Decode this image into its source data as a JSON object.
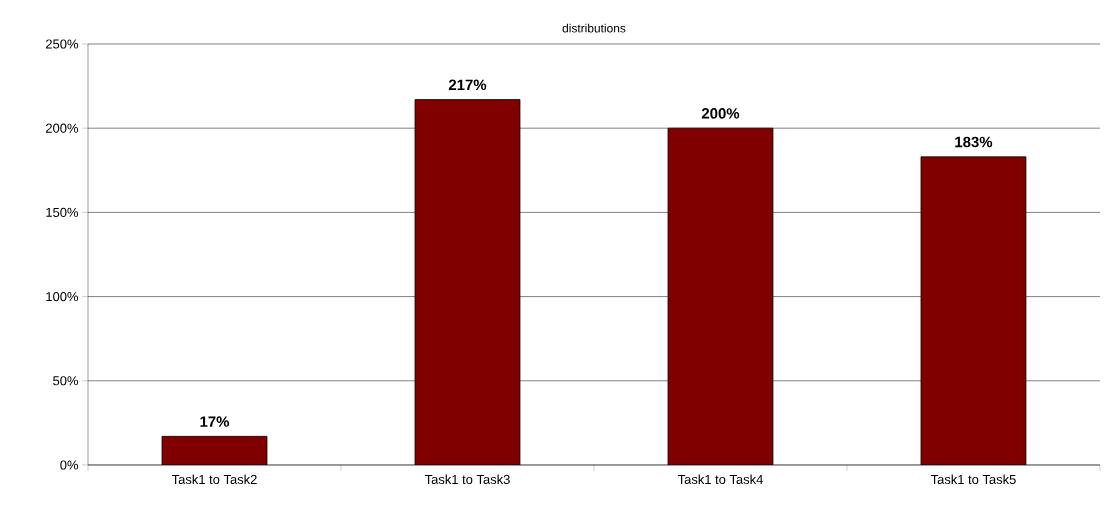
{
  "chart_data": {
    "type": "bar",
    "title": "distributions",
    "categories": [
      "Task1 to Task2",
      "Task1 to Task3",
      "Task1 to Task4",
      "Task1 to Task5"
    ],
    "values": [
      17,
      217,
      200,
      183
    ],
    "value_labels": [
      "17%",
      "217%",
      "200%",
      "183%"
    ],
    "color": "#800000",
    "ylim": [
      0,
      250
    ],
    "yticks": [
      {
        "value": 0,
        "label": "0%"
      },
      {
        "value": 50,
        "label": "50%"
      },
      {
        "value": 100,
        "label": "100%"
      },
      {
        "value": 150,
        "label": "150%"
      },
      {
        "value": 200,
        "label": "200%"
      },
      {
        "value": 250,
        "label": "250%"
      }
    ],
    "grid": "y"
  }
}
